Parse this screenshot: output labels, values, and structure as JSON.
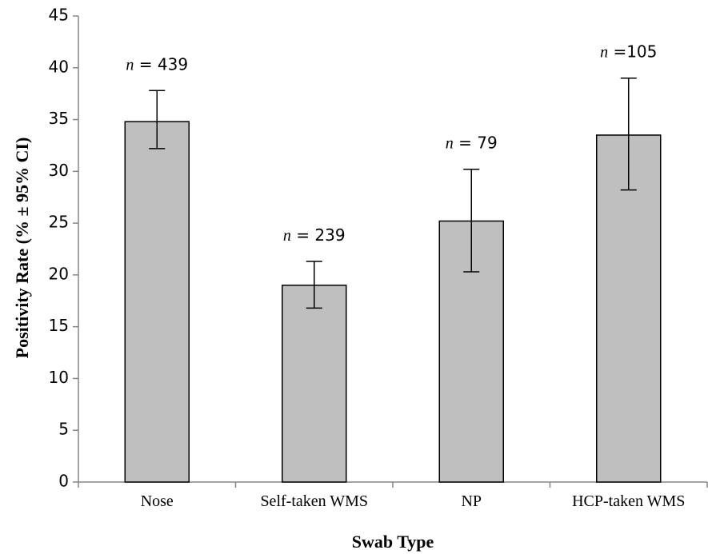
{
  "chart_data": {
    "type": "bar",
    "title": "",
    "xlabel": "Swab Type",
    "ylabel": "Positivity Rate (% ± 95% CI)",
    "ylim": [
      0,
      45
    ],
    "yticks": [
      0,
      5,
      10,
      15,
      20,
      25,
      30,
      35,
      40,
      45
    ],
    "categories": [
      "Nose",
      "Self-taken WMS",
      "NP",
      "HCP-taken WMS"
    ],
    "values": [
      34.8,
      19.0,
      25.2,
      33.5
    ],
    "error_low": [
      32.2,
      16.8,
      20.3,
      28.2
    ],
    "error_high": [
      37.8,
      21.3,
      30.2,
      39.0
    ],
    "annotations": [
      {
        "prefix": "n",
        "text": " = 439"
      },
      {
        "prefix": "n",
        "text": " = 239"
      },
      {
        "prefix": "n",
        "text": " = 79"
      },
      {
        "prefix": "n",
        "text": " =105"
      }
    ],
    "grid": false,
    "legend": "none",
    "colors": {
      "bar_fill": "#bfbfbf",
      "bar_stroke": "#000000",
      "axis": "#868686",
      "error": "#000000"
    }
  }
}
